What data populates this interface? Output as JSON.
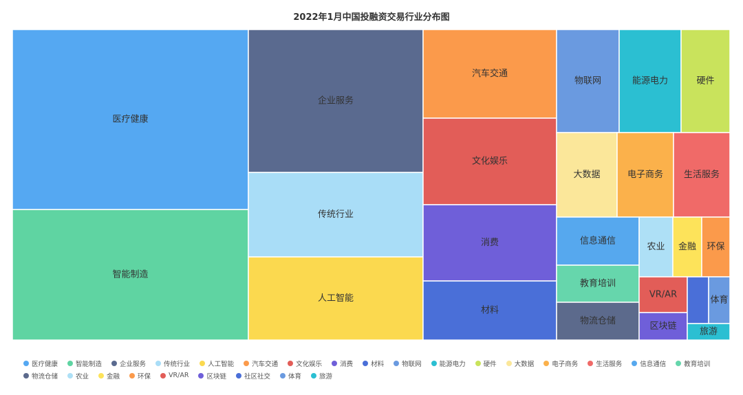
{
  "chart_data": {
    "type": "treemap",
    "title": "2022年1月中国投融资交易行业分布图",
    "items": [
      {
        "name": "医疗健康",
        "value": 16.2,
        "color": "#55a8f2",
        "text_color": "#333333"
      },
      {
        "name": "智能制造",
        "value": 12.4,
        "color": "#5fd4a2",
        "text_color": "#333333"
      },
      {
        "name": "企业服务",
        "value": 8.6,
        "color": "#5a6a8f",
        "text_color": "#333333"
      },
      {
        "name": "传统行业",
        "value": 4.9,
        "color": "#a9ddf7",
        "text_color": "#333333"
      },
      {
        "name": "人工智能",
        "value": 4.9,
        "color": "#fbd94f",
        "text_color": "#333333"
      },
      {
        "name": "汽车交通",
        "value": 3.6,
        "color": "#fb9a4b",
        "text_color": "#333333"
      },
      {
        "name": "文化娱乐",
        "value": 3.4,
        "color": "#e25d58",
        "text_color": "#333333"
      },
      {
        "name": "消费",
        "value": 3.0,
        "color": "#6f5fd9",
        "text_color": "#333333"
      },
      {
        "name": "材料",
        "value": 2.4,
        "color": "#4a6fd8",
        "text_color": "#333333"
      },
      {
        "name": "物联网",
        "value": 2.0,
        "color": "#6a9ae0",
        "text_color": "#333333"
      },
      {
        "name": "能源电力",
        "value": 2.0,
        "color": "#2bbfd2",
        "text_color": "#333333"
      },
      {
        "name": "硬件",
        "value": 1.9,
        "color": "#c9e35c",
        "text_color": "#333333"
      },
      {
        "name": "大数据",
        "value": 1.8,
        "color": "#fbe79a",
        "text_color": "#333333"
      },
      {
        "name": "电子商务",
        "value": 1.7,
        "color": "#fbb14b",
        "text_color": "#333333"
      },
      {
        "name": "生活服务",
        "value": 1.6,
        "color": "#f06a68",
        "text_color": "#333333"
      },
      {
        "name": "信息通信",
        "value": 1.3,
        "color": "#56a8ee",
        "text_color": "#333333"
      },
      {
        "name": "教育培训",
        "value": 1.0,
        "color": "#66d6ac",
        "text_color": "#333333"
      },
      {
        "name": "物流仓储",
        "value": 0.95,
        "color": "#5c6a8c",
        "text_color": "#333333"
      },
      {
        "name": "农业",
        "value": 0.55,
        "color": "#aee0f6",
        "text_color": "#333333"
      },
      {
        "name": "金融",
        "value": 0.5,
        "color": "#fde35a",
        "text_color": "#333333"
      },
      {
        "name": "环保",
        "value": 0.45,
        "color": "#fb9a4b",
        "text_color": "#333333"
      },
      {
        "name": "VR/AR",
        "value": 0.48,
        "color": "#e25d58",
        "text_color": "#333333"
      },
      {
        "name": "区块链",
        "value": 0.4,
        "color": "#6f5fd9",
        "text_color": "#333333"
      },
      {
        "name": "社区社交",
        "value": 0.25,
        "color": "#4a6fd8",
        "text_color": "#333333"
      },
      {
        "name": "体育",
        "value": 0.3,
        "color": "#6a9ae0",
        "text_color": "#333333"
      },
      {
        "name": "旅游",
        "value": 0.2,
        "color": "#2bbfd2",
        "text_color": "#333333"
      }
    ],
    "legend": [
      {
        "name": "医疗健康",
        "color": "#55a8f2"
      },
      {
        "name": "智能制造",
        "color": "#5fd4a2"
      },
      {
        "name": "企业服务",
        "color": "#5a6a8f"
      },
      {
        "name": "传统行业",
        "color": "#a9ddf7"
      },
      {
        "name": "人工智能",
        "color": "#fbd94f"
      },
      {
        "name": "汽车交通",
        "color": "#fb9a4b"
      },
      {
        "name": "文化娱乐",
        "color": "#e25d58"
      },
      {
        "name": "消费",
        "color": "#6f5fd9"
      },
      {
        "name": "材料",
        "color": "#4a6fd8"
      },
      {
        "name": "物联网",
        "color": "#6a9ae0"
      },
      {
        "name": "能源电力",
        "color": "#2bbfd2"
      },
      {
        "name": "硬件",
        "color": "#c9e35c"
      },
      {
        "name": "大数据",
        "color": "#fbe79a"
      },
      {
        "name": "电子商务",
        "color": "#fbb14b"
      },
      {
        "name": "生活服务",
        "color": "#f06a68"
      },
      {
        "name": "信息通信",
        "color": "#56a8ee"
      },
      {
        "name": "教育培训",
        "color": "#66d6ac"
      },
      {
        "name": "物流仓储",
        "color": "#5c6a8c"
      },
      {
        "name": "农业",
        "color": "#aee0f6"
      },
      {
        "name": "金融",
        "color": "#fde35a"
      },
      {
        "name": "环保",
        "color": "#fb9a4b"
      },
      {
        "name": "VR/AR",
        "color": "#e25d58"
      },
      {
        "name": "区块链",
        "color": "#6f5fd9"
      },
      {
        "name": "社区社交",
        "color": "#4a6fd8"
      },
      {
        "name": "体育",
        "color": "#6a9ae0"
      },
      {
        "name": "旅游",
        "color": "#2bbfd2"
      }
    ]
  }
}
